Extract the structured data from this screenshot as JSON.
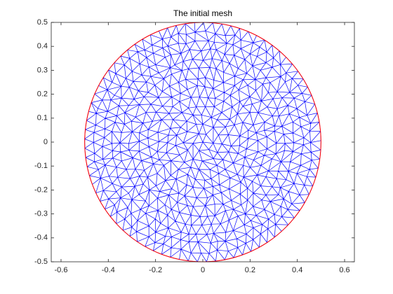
{
  "chart_data": {
    "type": "mesh",
    "title": "The initial mesh",
    "boundary": {
      "center": [
        0,
        0
      ],
      "radius": 0.5,
      "color": "#ff0000"
    },
    "mesh_color": "#0000ff",
    "xlim": [
      -0.6415,
      0.6415
    ],
    "xticks": [
      -0.6,
      -0.4,
      -0.2,
      0,
      0.2,
      0.4,
      0.6
    ],
    "ylim": [
      -0.5,
      0.5
    ],
    "yticks": [
      -0.5,
      -0.4,
      -0.3,
      -0.2,
      -0.1,
      0,
      0.1,
      0.2,
      0.3,
      0.4,
      0.5
    ]
  }
}
